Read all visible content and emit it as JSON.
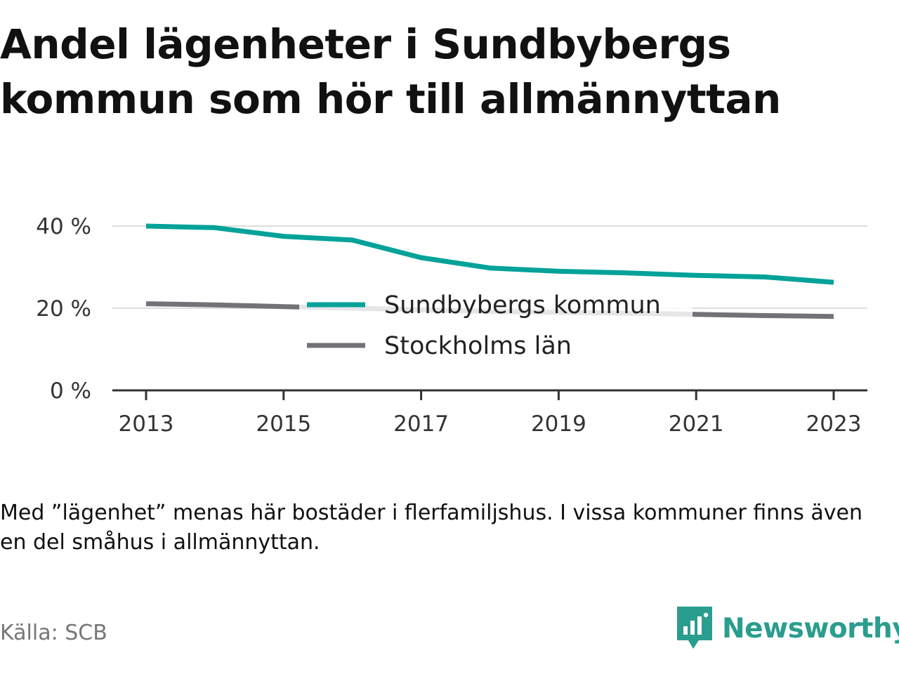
{
  "title": "Andel lägenheter i Sundbybergs kommun som hör till allmännyttan",
  "note": "Med ”lägenhet” menas här bostäder i flerfamiljshus. I vissa kommuner finns även en del småhus i allmännyttan.",
  "source": "Källa: SCB",
  "brand": {
    "name": "Newsworthy",
    "color": "#2a9d8f",
    "icon": "bar-chart-speech-bubble-icon"
  },
  "chart_data": {
    "type": "line",
    "title": "Andel lägenheter i Sundbybergs kommun som hör till allmännyttan",
    "xlabel": "",
    "ylabel": "",
    "x": [
      2013,
      2014,
      2015,
      2016,
      2017,
      2018,
      2019,
      2020,
      2021,
      2022,
      2023
    ],
    "xticks": [
      2013,
      2015,
      2017,
      2019,
      2021,
      2023
    ],
    "yticks": [
      {
        "value": 0,
        "label": "0 %"
      },
      {
        "value": 20,
        "label": "20 %"
      },
      {
        "value": 40,
        "label": "40 %"
      }
    ],
    "ylim": [
      0,
      40
    ],
    "grid": "horizontal",
    "legend_position": "center",
    "series": [
      {
        "name": "Sundbybergs kommun",
        "color": "#00a299",
        "values": [
          40.0,
          39.6,
          37.5,
          36.6,
          32.3,
          29.8,
          29.0,
          28.6,
          28.0,
          27.6,
          26.3
        ]
      },
      {
        "name": "Stockholms län",
        "color": "#737278",
        "values": [
          21.1,
          20.8,
          20.4,
          20.0,
          19.6,
          19.2,
          19.0,
          18.8,
          18.5,
          18.2,
          18.0
        ]
      }
    ]
  }
}
